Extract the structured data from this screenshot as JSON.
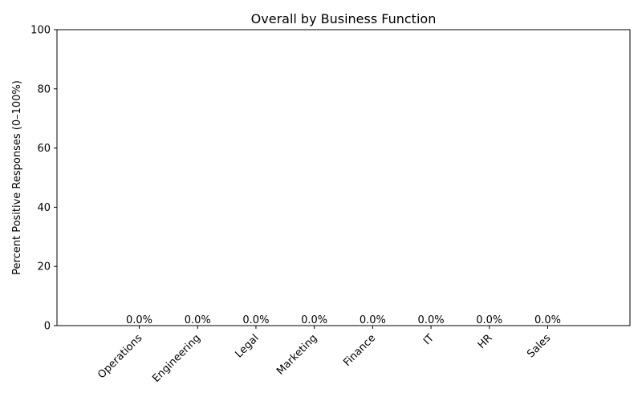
{
  "chart_data": {
    "type": "bar",
    "title": "Overall by Business Function",
    "xlabel": "",
    "ylabel": "Percent Positive Responses (0–100%)",
    "ylim": [
      0,
      100
    ],
    "yticks": [
      0,
      20,
      40,
      60,
      80,
      100
    ],
    "categories": [
      "Operations",
      "Engineering",
      "Legal",
      "Marketing",
      "Finance",
      "IT",
      "HR",
      "Sales"
    ],
    "values": [
      0,
      0,
      0,
      0,
      0,
      0,
      0,
      0
    ],
    "data_labels": [
      "0.0%",
      "0.0%",
      "0.0%",
      "0.0%",
      "0.0%",
      "0.0%",
      "0.0%",
      "0.0%"
    ],
    "grid": false,
    "legend": "none",
    "colors": {
      "bar": "#1f77b4",
      "axis": "#000000",
      "background": "#ffffff"
    }
  }
}
